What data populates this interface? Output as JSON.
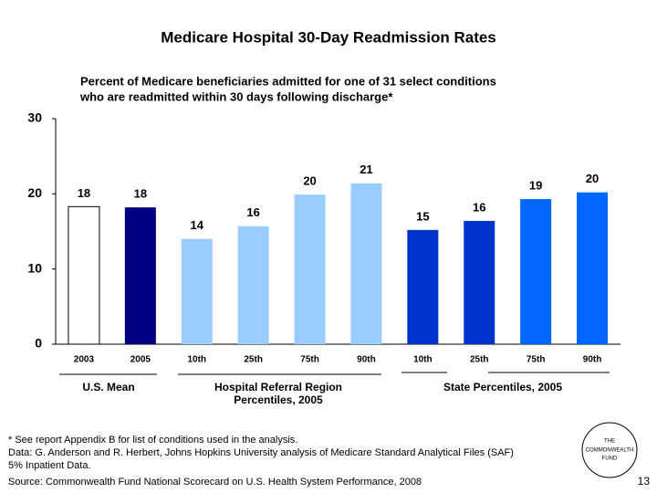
{
  "chart_data": {
    "type": "bar",
    "title": "Medicare Hospital 30-Day Readmission Rates",
    "subtitle": [
      "Percent of Medicare beneficiaries admitted for one of 31 select conditions",
      "who are readmitted within 30 days following discharge*"
    ],
    "categories": [
      "2003",
      "2005",
      "10th",
      "25th",
      "75th",
      "90th",
      "10th",
      "25th",
      "75th",
      "90th"
    ],
    "values": [
      18.3,
      18.2,
      14.0,
      15.7,
      19.9,
      21.4,
      15.2,
      16.4,
      19.3,
      20.2
    ],
    "value_labels": [
      "18",
      "18",
      "14",
      "16",
      "20",
      "21",
      "15",
      "16",
      "19",
      "20"
    ],
    "colors": [
      "#ffffff",
      "#000080",
      "#99ccff",
      "#99ccff",
      "#99ccff",
      "#99ccff",
      "#0033cc",
      "#0033cc",
      "#0066ff",
      "#0066ff"
    ],
    "ylim": [
      0,
      30
    ],
    "yticks": [
      0,
      10,
      20,
      30
    ],
    "grid": false,
    "group_labels": [
      [
        "U.S. Mean"
      ],
      [
        "Hospital Referral Region",
        "Percentiles, 2005"
      ],
      [
        "State Percentiles, 2005"
      ]
    ]
  },
  "notes": [
    "* See report Appendix B for list of conditions used in the analysis.",
    "Data: G. Anderson and R. Herbert, Johns Hopkins University analysis of Medicare Standard Analytical Files (SAF)",
    "5% Inpatient Data."
  ],
  "source": "Source: Commonwealth Fund National Scorecard on U.S. Health System Performance, 2008",
  "logo": [
    "THE",
    "COMMONWEALTH",
    "FUND"
  ],
  "page_number": "13"
}
